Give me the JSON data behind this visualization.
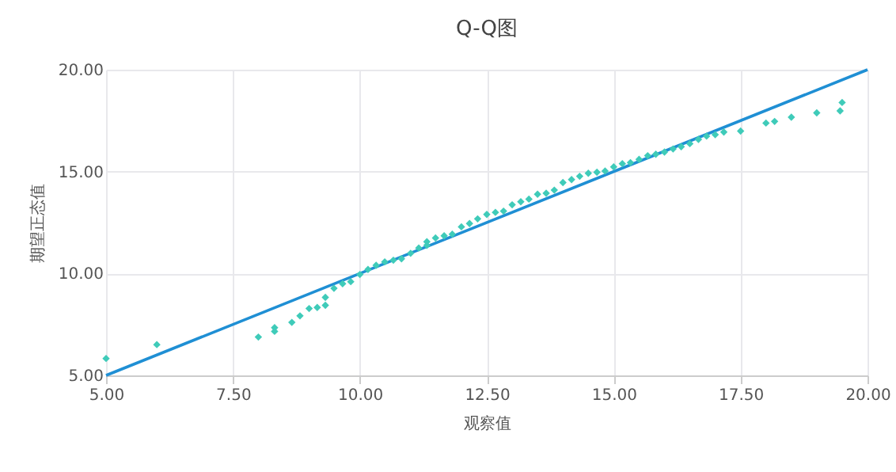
{
  "chart_data": {
    "type": "scatter",
    "title": "Q-Q图",
    "xlabel": "观察值",
    "ylabel": "期望正态值",
    "xlim": [
      5,
      20
    ],
    "ylim": [
      5,
      20
    ],
    "xticks": [
      {
        "value": 5,
        "label": "5.00"
      },
      {
        "value": 7.5,
        "label": "7.50"
      },
      {
        "value": 10,
        "label": "10.00"
      },
      {
        "value": 12.5,
        "label": "12.50"
      },
      {
        "value": 15,
        "label": "15.00"
      },
      {
        "value": 17.5,
        "label": "17.50"
      },
      {
        "value": 20,
        "label": "20.00"
      }
    ],
    "yticks": [
      {
        "value": 5,
        "label": "5.00"
      },
      {
        "value": 10,
        "label": "10.00"
      },
      {
        "value": 15,
        "label": "15.00"
      },
      {
        "value": 20,
        "label": "20.00"
      }
    ],
    "grid": true,
    "series": [
      {
        "marker": "diamond",
        "color": "#3fcbb9",
        "x": [
          5.0,
          6.0,
          8.0,
          8.32,
          8.32,
          8.66,
          8.82,
          9.0,
          9.16,
          9.32,
          9.32,
          9.49,
          9.66,
          9.82,
          10.0,
          10.16,
          10.32,
          10.49,
          10.66,
          10.82,
          11.0,
          11.16,
          11.32,
          11.32,
          11.49,
          11.66,
          11.82,
          12.0,
          12.16,
          12.32,
          12.5,
          12.67,
          12.83,
          13.0,
          13.17,
          13.33,
          13.5,
          13.67,
          13.83,
          14.0,
          14.17,
          14.33,
          14.5,
          14.67,
          14.83,
          15.0,
          15.17,
          15.33,
          15.5,
          15.67,
          15.83,
          16.0,
          16.17,
          16.33,
          16.5,
          16.67,
          16.83,
          17.0,
          17.17,
          17.5,
          18.0,
          18.17,
          18.5,
          19.0,
          19.46,
          19.5
        ],
        "values": [
          5.83,
          6.51,
          6.88,
          7.34,
          7.16,
          7.6,
          7.92,
          8.28,
          8.33,
          8.44,
          8.83,
          9.27,
          9.5,
          9.6,
          9.95,
          10.2,
          10.4,
          10.57,
          10.65,
          10.72,
          10.99,
          11.25,
          11.38,
          11.56,
          11.74,
          11.85,
          11.93,
          12.29,
          12.45,
          12.68,
          12.9,
          13.0,
          13.06,
          13.37,
          13.52,
          13.65,
          13.89,
          13.94,
          14.09,
          14.46,
          14.61,
          14.77,
          14.92,
          14.97,
          15.03,
          15.23,
          15.39,
          15.44,
          15.6,
          15.78,
          15.85,
          15.96,
          16.11,
          16.22,
          16.37,
          16.58,
          16.74,
          16.81,
          16.94,
          16.99,
          17.38,
          17.46,
          17.67,
          17.88,
          17.98,
          18.39
        ]
      },
      {
        "type": "line",
        "color": "#1f8fd4",
        "x": [
          5,
          20
        ],
        "values": [
          5,
          20
        ]
      }
    ]
  }
}
